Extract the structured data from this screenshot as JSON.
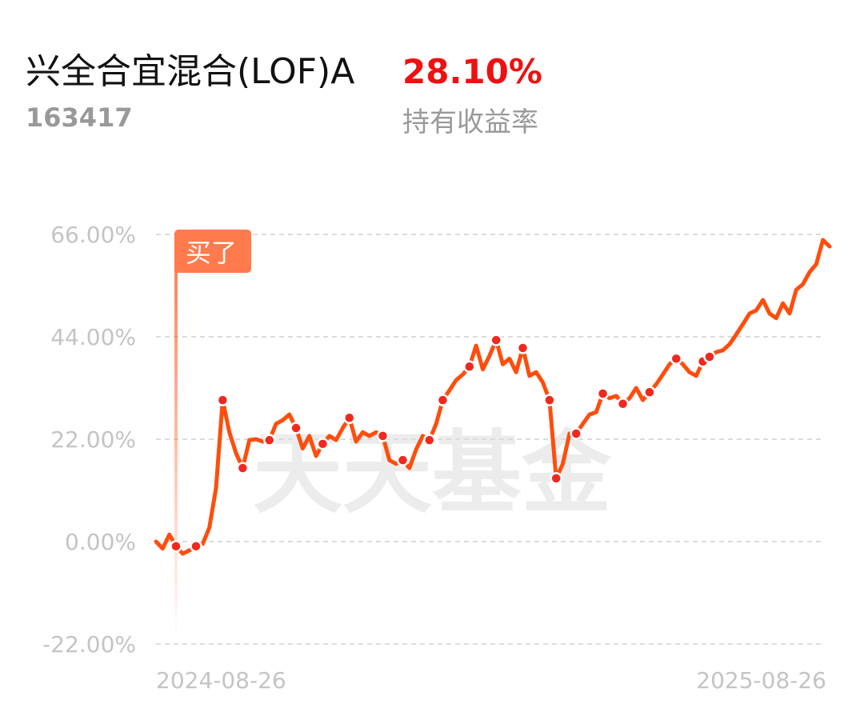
{
  "header": {
    "title": "兴全合宜混合(LOF)A",
    "code": "163417",
    "return_value": "28.10%",
    "return_label": "持有收益率"
  },
  "chart_data": {
    "type": "line",
    "watermark": "天天基金",
    "categories": [
      "2024-08-26",
      null,
      null,
      null,
      null,
      null,
      null,
      null,
      null,
      null,
      null,
      null,
      null,
      null,
      null,
      null,
      null,
      null,
      null,
      null,
      null,
      null,
      null,
      null,
      null,
      null,
      null,
      null,
      null,
      null,
      null,
      null,
      null,
      null,
      null,
      null,
      null,
      null,
      null,
      null,
      null,
      null,
      null,
      null,
      null,
      null,
      null,
      null,
      null,
      null,
      null,
      null,
      null,
      null,
      null,
      null,
      null,
      null,
      null,
      null,
      null,
      null,
      null,
      null,
      null,
      null,
      null,
      null,
      null,
      null,
      null,
      null,
      null,
      null,
      null,
      null,
      null,
      null,
      null,
      null,
      null,
      null,
      null,
      null,
      null,
      null,
      null,
      null,
      null,
      null,
      null,
      null,
      null,
      null,
      null,
      null,
      null,
      null,
      null,
      null,
      null,
      "2025-08-26"
    ],
    "series": [
      {
        "color": "#ff4d0d",
        "values": [
          0,
          -1.5,
          1.5,
          -1,
          -2.6,
          -1.9,
          -1,
          -0.5,
          3,
          11.5,
          30.4,
          23.5,
          19,
          15.8,
          21.8,
          22,
          21.5,
          21.8,
          25.3,
          26.1,
          27.3,
          24.4,
          20,
          22.7,
          18.4,
          21,
          22.7,
          21.8,
          24.4,
          26.6,
          21.5,
          23.5,
          22.7,
          23.5,
          22.7,
          17.5,
          16.7,
          17.5,
          15.8,
          19.8,
          22.7,
          21.8,
          25.3,
          30.4,
          32.5,
          34.7,
          35.9,
          37.6,
          42.1,
          37,
          39.9,
          43.3,
          38.1,
          39.3,
          36.4,
          41.6,
          35.6,
          36.4,
          34.2,
          30.4,
          13.6,
          16.7,
          23.2,
          23.2,
          25.3,
          27.3,
          27.8,
          31.8,
          30.8,
          31.3,
          29.6,
          30.8,
          33,
          30.4,
          32.1,
          33.8,
          35.9,
          38.1,
          39.3,
          38.1,
          36.4,
          35.6,
          38.7,
          39.7,
          40.7,
          41.1,
          42.4,
          44.5,
          46.7,
          49,
          49.7,
          51.9,
          49,
          48,
          51.2,
          49,
          54.1,
          55.3,
          57.9,
          59.6,
          64.8,
          63.4
        ]
      },
      {
        "color": "#f0281e",
        "marker": true,
        "values": [
          null,
          null,
          null,
          -1,
          null,
          null,
          -1,
          null,
          null,
          null,
          30.4,
          null,
          null,
          15.8,
          null,
          null,
          null,
          21.8,
          null,
          null,
          null,
          24.4,
          null,
          null,
          null,
          21,
          null,
          null,
          null,
          26.6,
          null,
          null,
          null,
          null,
          22.7,
          null,
          null,
          17.5,
          null,
          null,
          null,
          21.8,
          null,
          30.4,
          null,
          null,
          null,
          37.6,
          null,
          null,
          null,
          43.3,
          null,
          null,
          null,
          41.6,
          null,
          null,
          null,
          30.4,
          13.6,
          null,
          null,
          23.2,
          null,
          null,
          null,
          31.8,
          null,
          null,
          29.6,
          null,
          null,
          null,
          32.1,
          null,
          null,
          null,
          39.3,
          null,
          null,
          null,
          38.7,
          39.7,
          null,
          null,
          null,
          null,
          null,
          null,
          null,
          null,
          null,
          null,
          null,
          null,
          null,
          null,
          null,
          null,
          null,
          null
        ]
      }
    ],
    "annotations": [
      {
        "text": "买了",
        "category_index": 3
      }
    ],
    "ylim": [
      -22,
      66
    ],
    "yticks": [
      {
        "value": -22,
        "label": "-22.00%"
      },
      {
        "value": 0,
        "label": "0.00%"
      },
      {
        "value": 22,
        "label": "22.00%"
      },
      {
        "value": 44,
        "label": "44.00%"
      },
      {
        "value": 66,
        "label": "66.00%"
      }
    ],
    "grid": true
  }
}
